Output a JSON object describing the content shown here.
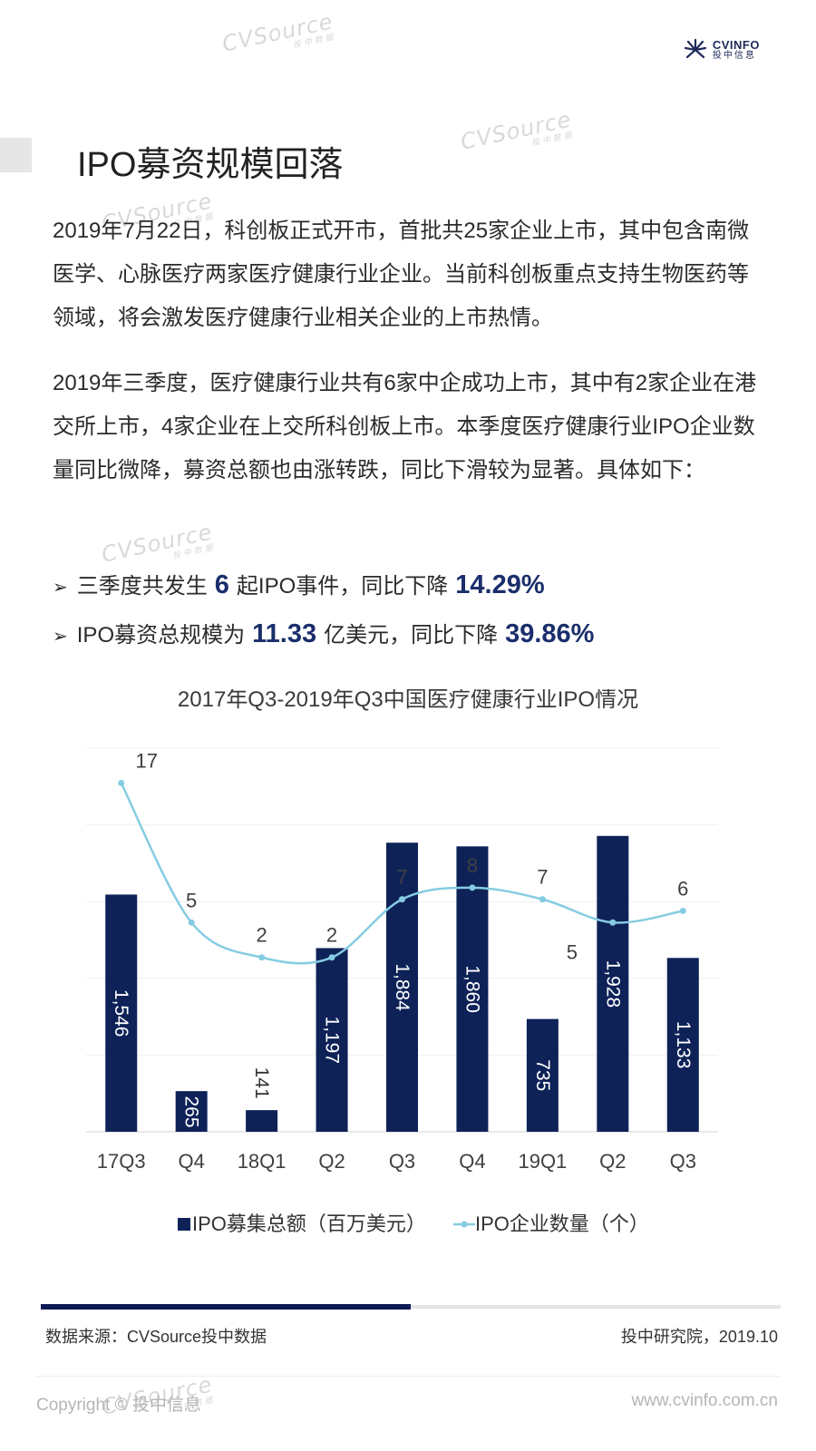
{
  "header": {
    "logo_en": "CVINFO",
    "logo_cn": "投中信息",
    "watermark_en": "CVSource",
    "watermark_cn": "投中数据"
  },
  "page_title": "IPO募资规模回落",
  "paragraphs": [
    "2019年7月22日，科创板正式开市，首批共25家企业上市，其中包含南微医学、心脉医疗两家医疗健康行业企业。当前科创板重点支持生物医药等领域，将会激发医疗健康行业相关企业的上市热情。",
    "2019年三季度，医疗健康行业共有6家中企成功上市，其中有2家企业在港交所上市，4家企业在上交所科创板上市。本季度医疗健康行业IPO企业数量同比微降，募资总额也由涨转跌，同比下滑较为显著。具体如下："
  ],
  "bullets": [
    {
      "arrow": "➢",
      "pre": "三季度共发生",
      "num": "6",
      "mid": "起IPO事件，同比下降",
      "pct": "14.29%"
    },
    {
      "arrow": "➢",
      "pre": "IPO募资总规模为",
      "num": "11.33",
      "mid": "亿美元，同比下降",
      "pct": "39.86%"
    }
  ],
  "chart_data": {
    "type": "bar",
    "title": "2017年Q3-2019年Q3中国医疗健康行业IPO情况",
    "categories": [
      "17Q3",
      "Q4",
      "18Q1",
      "Q2",
      "Q3",
      "Q4",
      "19Q1",
      "Q2",
      "Q3"
    ],
    "series": [
      {
        "name": "IPO募集总额（百万美元）",
        "type": "bar",
        "axis": "left",
        "color": "#0e2258",
        "values": [
          1546,
          265,
          141,
          1197,
          1884,
          1860,
          735,
          1928,
          1133
        ],
        "labels": [
          "1,546",
          "265",
          "141",
          "1,197",
          "1,884",
          "1,860",
          "735",
          "1,928",
          "1,133"
        ]
      },
      {
        "name": "IPO企业数量（个）",
        "type": "line",
        "axis": "right",
        "color": "#85cce2",
        "values": [
          17,
          5,
          2,
          2,
          7,
          8,
          7,
          5,
          6
        ]
      }
    ],
    "ylim_left": [
      0,
      2500
    ],
    "ylim_right": [
      -13,
      20
    ],
    "grid": true,
    "legend": "bottom"
  },
  "footer": {
    "source": "数据来源：CVSource投中数据",
    "research": "投中研究院，2019.10",
    "copyright": "Copyright © 投中信息",
    "website": "www.cvinfo.com.cn"
  }
}
